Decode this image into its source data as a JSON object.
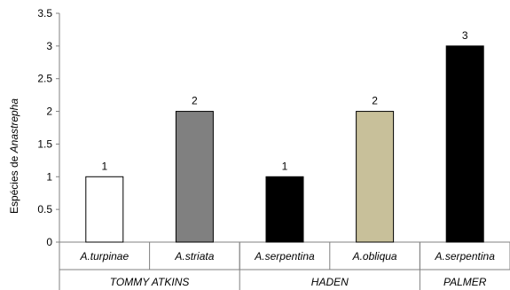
{
  "chart_data": {
    "type": "bar",
    "ylabel_parts": [
      "Espécies de ",
      "Anastrepha"
    ],
    "ylim": [
      0,
      3.5
    ],
    "yticks": [
      "0",
      "0.5",
      "1",
      "1.5",
      "2",
      "2.5",
      "3",
      "3.5"
    ],
    "grid": false,
    "legend": "none",
    "categories": [
      "A.turpinae",
      "A.striata",
      "A.serpentina",
      "A.obliqua",
      "A.serpentina"
    ],
    "groups": [
      {
        "name": "TOMMY ATKINS",
        "span": [
          0,
          1
        ]
      },
      {
        "name": "HADEN",
        "span": [
          2,
          3
        ]
      },
      {
        "name": "PALMER",
        "span": [
          4,
          4
        ]
      }
    ],
    "values": [
      1,
      2,
      1,
      2,
      3
    ],
    "data_labels": [
      "1",
      "2",
      "1",
      "2",
      "3"
    ],
    "bar_colors": [
      "#ffffff",
      "#808080",
      "#000000",
      "#c8c09a",
      "#000000"
    ]
  }
}
